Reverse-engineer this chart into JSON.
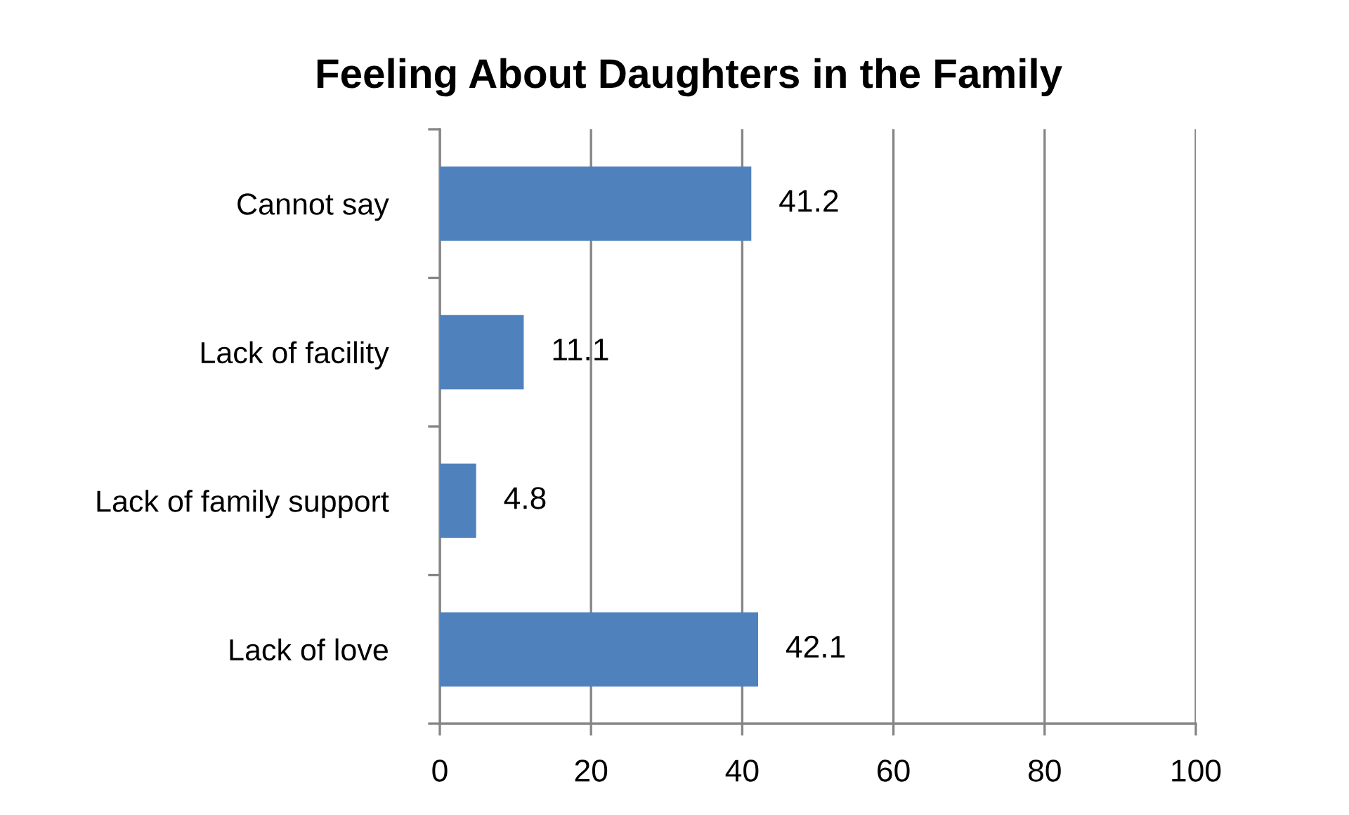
{
  "chart_data": {
    "type": "bar",
    "orientation": "horizontal",
    "title": "Feeling About Daughters in the Family",
    "categories": [
      "Cannot say",
      "Lack of facility",
      "Lack of family support",
      "Lack of love"
    ],
    "values": [
      41.2,
      11.1,
      4.8,
      42.1
    ],
    "color": "#4f81bd",
    "xlim": [
      0,
      100
    ],
    "xticks": [
      0,
      20,
      40,
      60,
      80,
      100
    ],
    "grid": "x",
    "data_labels": true
  }
}
